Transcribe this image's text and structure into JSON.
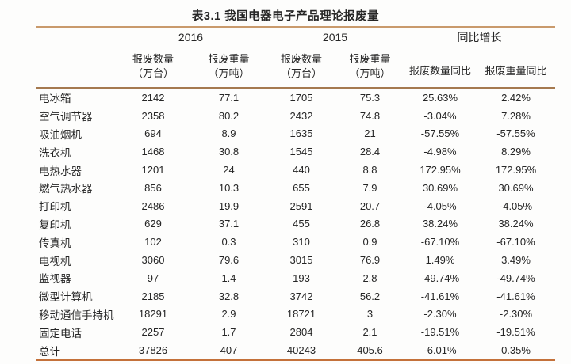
{
  "title": "表3.1 我国电器电子产品理论报废量",
  "colors": {
    "rule_top": "#c99a6c",
    "rule_header": "#a5794f",
    "rule_bottom": "#c4713a",
    "text": "#262626",
    "background": "#fdfdfc"
  },
  "table": {
    "groups": [
      {
        "label": "2016"
      },
      {
        "label": "2015"
      },
      {
        "label": "同比增长"
      }
    ],
    "sub_columns": [
      {
        "line1": "报废数量",
        "line2": "（万台）"
      },
      {
        "line1": "报废重量",
        "line2": "（万吨）"
      },
      {
        "line1": "报废数量",
        "line2": "（万台）"
      },
      {
        "line1": "报废重量",
        "line2": "（万吨）"
      },
      {
        "label": "报废数量同比"
      },
      {
        "label": "报废重量同比"
      }
    ],
    "rows": [
      {
        "label": "电冰箱",
        "values": [
          "2142",
          "77.1",
          "1705",
          "75.3",
          "25.63%",
          "2.42%"
        ]
      },
      {
        "label": "空气调节器",
        "values": [
          "2358",
          "80.2",
          "2432",
          "74.8",
          "-3.04%",
          "7.28%"
        ]
      },
      {
        "label": "吸油烟机",
        "values": [
          "694",
          "8.9",
          "1635",
          "21",
          "-57.55%",
          "-57.55%"
        ]
      },
      {
        "label": "洗衣机",
        "values": [
          "1468",
          "30.8",
          "1545",
          "28.4",
          "-4.98%",
          "8.29%"
        ]
      },
      {
        "label": "电热水器",
        "values": [
          "1201",
          "24",
          "440",
          "8.8",
          "172.95%",
          "172.95%"
        ]
      },
      {
        "label": "燃气热水器",
        "values": [
          "856",
          "10.3",
          "655",
          "7.9",
          "30.69%",
          "30.69%"
        ]
      },
      {
        "label": "打印机",
        "values": [
          "2486",
          "19.9",
          "2591",
          "20.7",
          "-4.05%",
          "-4.05%"
        ]
      },
      {
        "label": "复印机",
        "values": [
          "629",
          "37.1",
          "455",
          "26.8",
          "38.24%",
          "38.24%"
        ]
      },
      {
        "label": "传真机",
        "values": [
          "102",
          "0.3",
          "310",
          "0.9",
          "-67.10%",
          "-67.10%"
        ]
      },
      {
        "label": "电视机",
        "values": [
          "3060",
          "79.6",
          "3015",
          "76.9",
          "1.49%",
          "3.49%"
        ]
      },
      {
        "label": "监视器",
        "values": [
          "97",
          "1.4",
          "193",
          "2.8",
          "-49.74%",
          "-49.74%"
        ]
      },
      {
        "label": "微型计算机",
        "values": [
          "2185",
          "32.8",
          "3742",
          "56.2",
          "-41.61%",
          "-41.61%"
        ]
      },
      {
        "label": "移动通信手持机",
        "values": [
          "18291",
          "2.9",
          "18721",
          "3",
          "-2.30%",
          "-2.30%"
        ]
      },
      {
        "label": "固定电话",
        "values": [
          "2257",
          "1.7",
          "2804",
          "2.1",
          "-19.51%",
          "-19.51%"
        ]
      },
      {
        "label": "总计",
        "values": [
          "37826",
          "407",
          "40243",
          "405.6",
          "-6.01%",
          "0.35%"
        ]
      }
    ]
  }
}
